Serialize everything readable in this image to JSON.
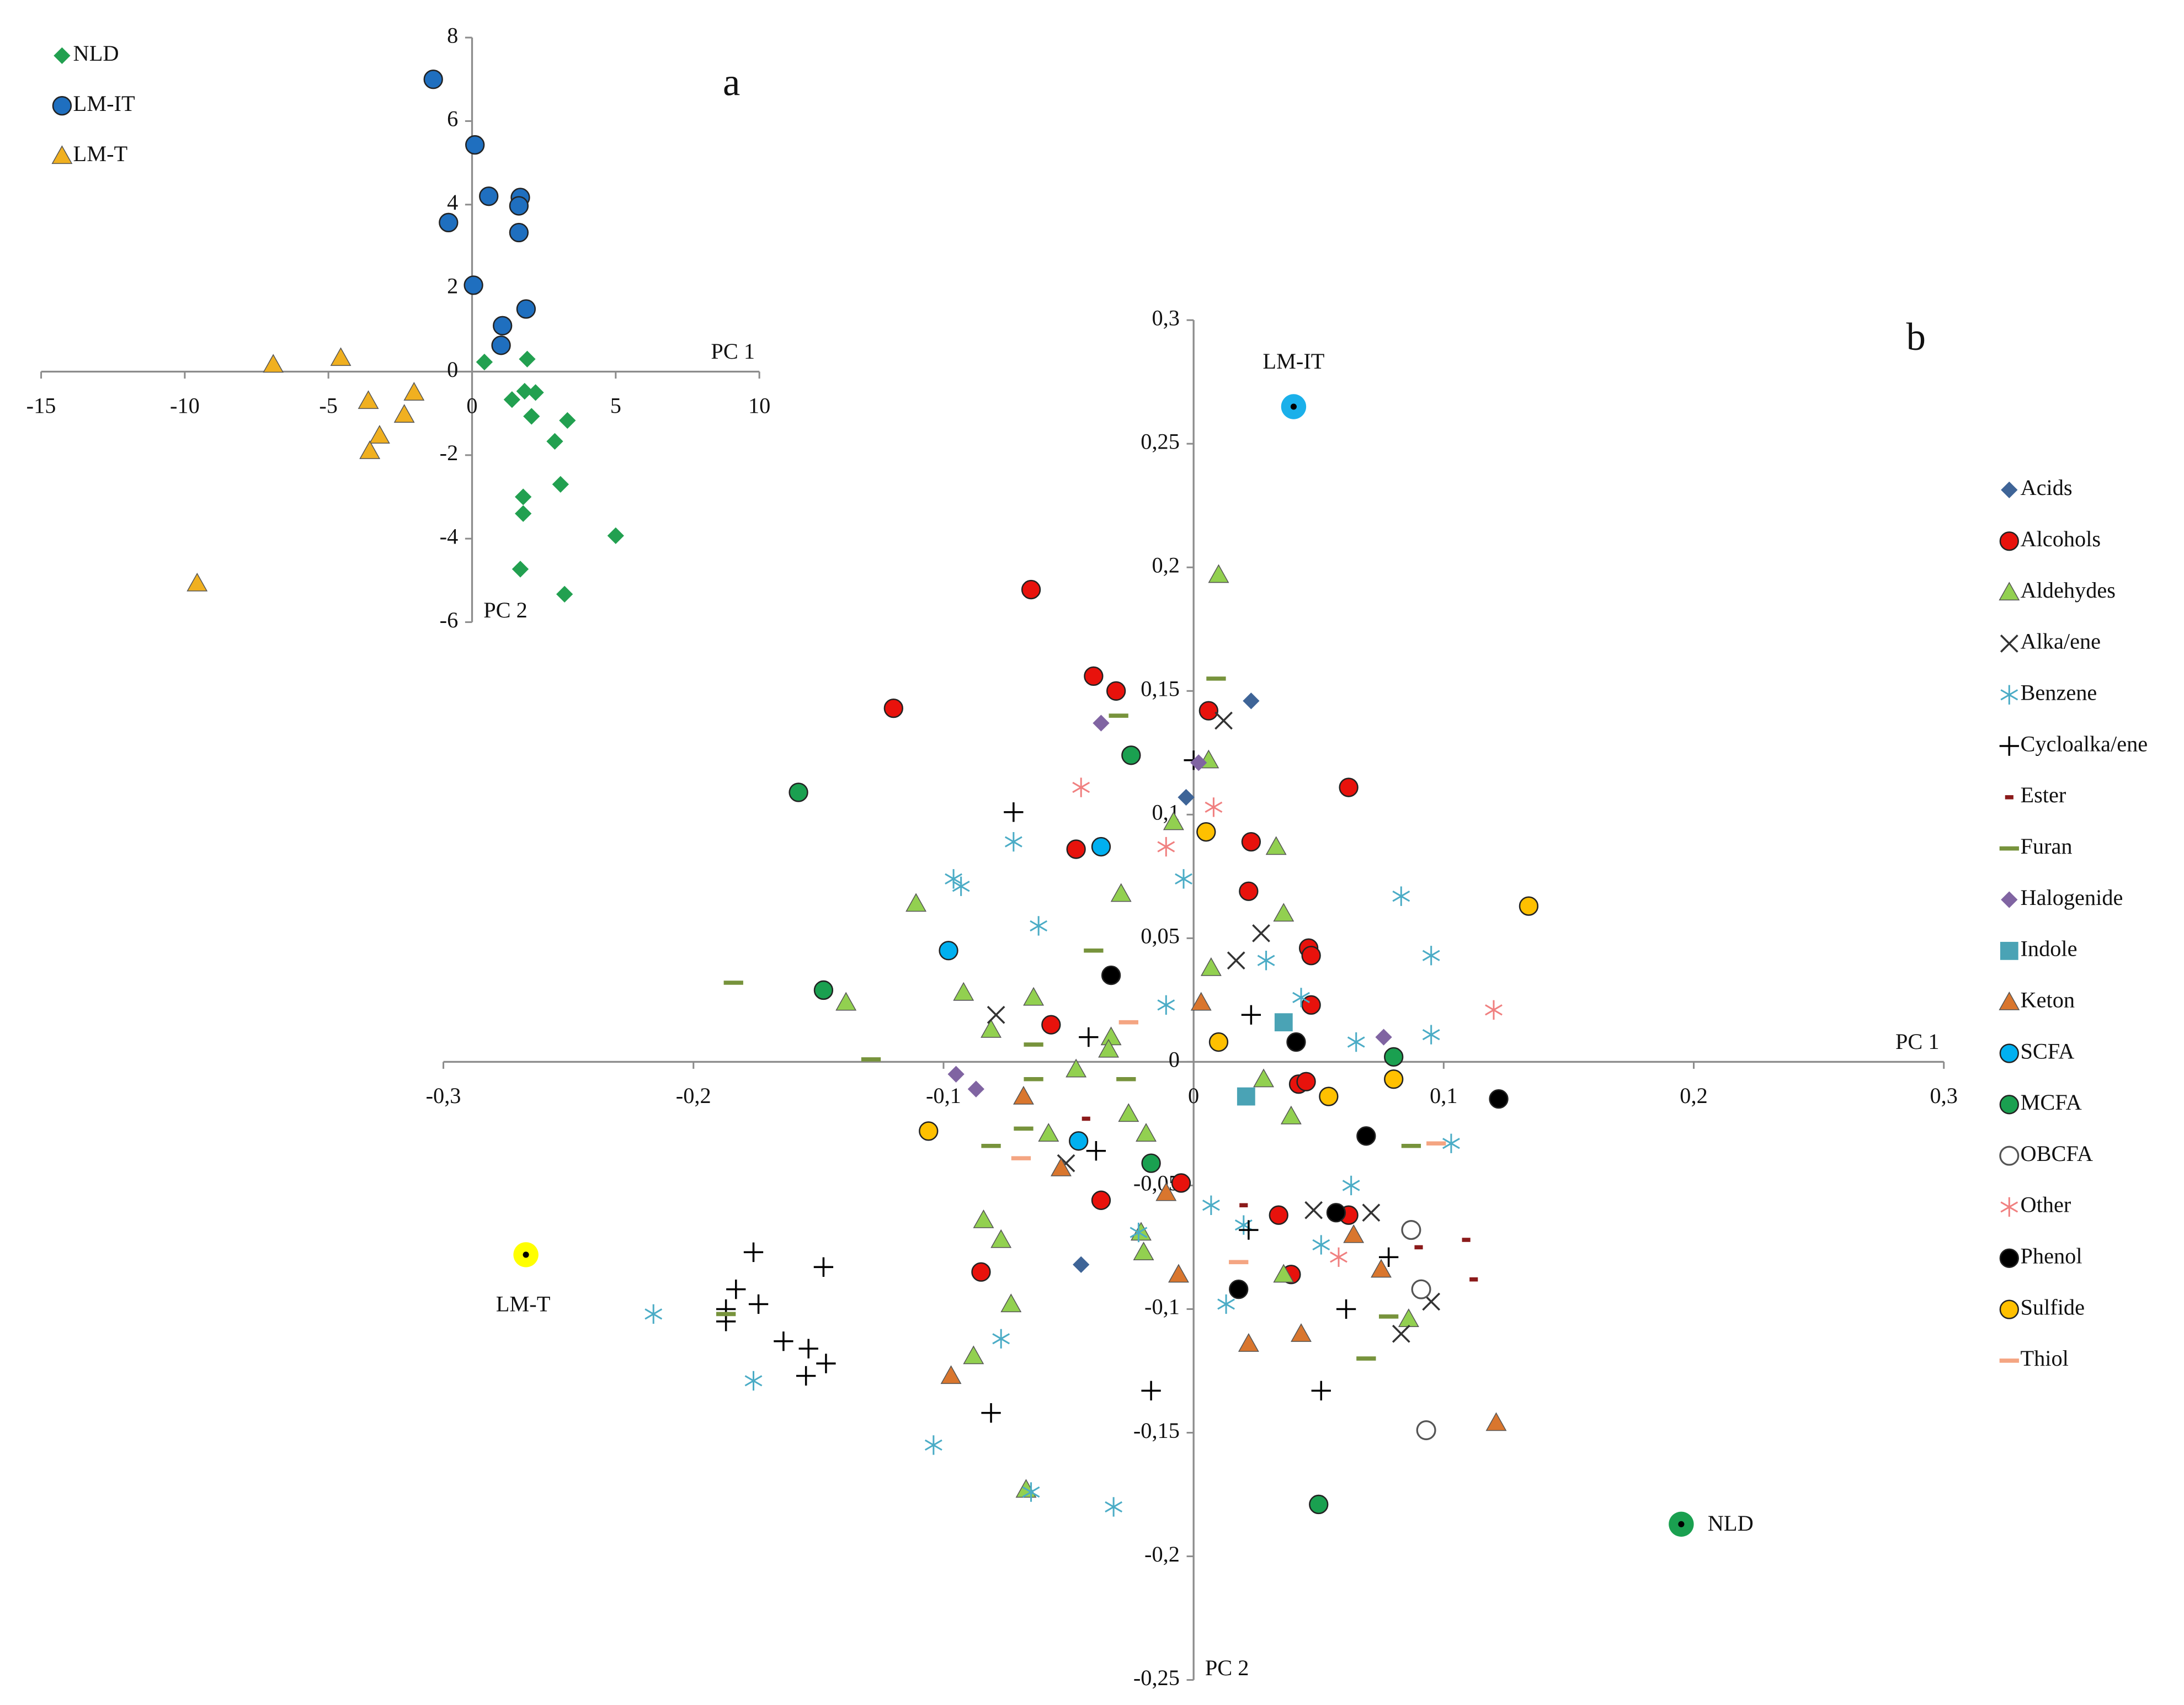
{
  "chart_data": [
    {
      "type": "scatter",
      "title": "a",
      "xlabel": "PC 1",
      "ylabel": "PC 2",
      "xlim": [
        -15,
        10
      ],
      "xticks": [
        -15,
        -10,
        -5,
        0,
        5,
        10
      ],
      "ylim": [
        -6,
        8
      ],
      "yticks": [
        -6,
        -4,
        -2,
        0,
        2,
        4,
        6,
        8
      ],
      "grid": false,
      "legend": "top-left",
      "series": [
        {
          "name": "NLD",
          "color": "#22a050",
          "marker": "diamond",
          "x": [
            0.43,
            1.92,
            1.39,
            1.83,
            2.21,
            2.07,
            3.32,
            2.88,
            3.08,
            1.78,
            1.78,
            5.0,
            1.68,
            3.22
          ],
          "y": [
            0.23,
            0.3,
            -0.67,
            -0.47,
            -0.5,
            -1.07,
            -1.17,
            -1.67,
            -2.7,
            -3.0,
            -3.4,
            -3.93,
            -4.73,
            -5.33
          ]
        },
        {
          "name": "LM-IT",
          "color": "#1f6fbf",
          "marker": "circle",
          "x": [
            -1.35,
            0.1,
            -0.82,
            0.58,
            1.68,
            1.63,
            1.63,
            0.05,
            1.88,
            1.06,
            1.01
          ],
          "y": [
            7.0,
            5.43,
            3.57,
            4.2,
            4.17,
            3.97,
            3.33,
            2.07,
            1.5,
            1.1,
            0.63
          ]
        },
        {
          "name": "LM-T",
          "color": "#f0b020",
          "marker": "triangle",
          "x": [
            -6.92,
            -4.57,
            -3.61,
            -2.02,
            -2.36,
            -3.22,
            -3.56,
            -9.57
          ],
          "y": [
            0.17,
            0.33,
            -0.7,
            -0.5,
            -1.03,
            -1.53,
            -1.9,
            -5.07
          ]
        }
      ]
    },
    {
      "type": "scatter",
      "title": "b",
      "xlabel": "PC 1",
      "ylabel": "PC 2",
      "xlim": [
        -0.3,
        0.3
      ],
      "xticks": [
        {
          "value": -0.3,
          "label": "-0,3"
        },
        {
          "value": -0.2,
          "label": "-0,2"
        },
        {
          "value": -0.1,
          "label": "-0,1"
        },
        0,
        {
          "value": 0.1,
          "label": "0,1"
        },
        {
          "value": 0.2,
          "label": "0,2"
        },
        {
          "value": 0.3,
          "label": "0,3"
        }
      ],
      "ylim": [
        -0.25,
        0.3
      ],
      "yticks": [
        {
          "value": -0.25,
          "label": "-0,25"
        },
        {
          "value": -0.2,
          "label": "-0,2"
        },
        {
          "value": -0.15,
          "label": "-0,15"
        },
        {
          "value": -0.1,
          "label": "-0,1"
        },
        {
          "value": -0.05,
          "label": "-0,05"
        },
        0,
        {
          "value": 0.05,
          "label": "0,05"
        },
        {
          "value": 0.1,
          "label": "0,1"
        },
        {
          "value": 0.15,
          "label": "0,15"
        },
        {
          "value": 0.2,
          "label": "0,2"
        },
        {
          "value": 0.25,
          "label": "0,25"
        },
        {
          "value": 0.3,
          "label": "0,3"
        }
      ],
      "grid": false,
      "legend": "right",
      "series": [
        {
          "name": "Acids",
          "color": "#3e6497",
          "marker": "diamond",
          "x": [
            0.023,
            -0.003,
            -0.045
          ],
          "y": [
            0.146,
            0.107,
            -0.082
          ]
        },
        {
          "name": "Alcohols",
          "color": "#e8120c",
          "marker": "circle",
          "x": [
            -0.065,
            -0.12,
            -0.04,
            -0.031,
            0.006,
            0.062,
            -0.047,
            0.023,
            0.022,
            0.046,
            0.047,
            0.047,
            -0.057,
            0.042,
            0.045,
            -0.005,
            -0.037,
            0.034,
            0.062,
            0.039,
            -0.085
          ],
          "y": [
            0.191,
            0.143,
            0.156,
            0.15,
            0.142,
            0.111,
            0.086,
            0.089,
            0.069,
            0.046,
            0.043,
            0.023,
            0.015,
            -0.009,
            -0.008,
            -0.049,
            -0.056,
            -0.062,
            -0.062,
            -0.086,
            -0.085
          ]
        },
        {
          "name": "Aldehydes",
          "color": "#92d050",
          "marker": "triangle",
          "x": [
            0.01,
            0.006,
            -0.008,
            0.033,
            -0.029,
            -0.111,
            0.036,
            0.007,
            -0.139,
            -0.092,
            -0.064,
            -0.081,
            -0.033,
            -0.034,
            -0.047,
            0.028,
            0.039,
            -0.058,
            -0.026,
            -0.019,
            -0.084,
            -0.077,
            -0.021,
            -0.02,
            0.036,
            -0.073,
            -0.088,
            0.086,
            -0.067
          ],
          "y": [
            0.197,
            0.122,
            0.097,
            0.087,
            0.068,
            0.064,
            0.06,
            0.038,
            0.024,
            0.028,
            0.026,
            0.013,
            0.01,
            0.005,
            -0.003,
            -0.007,
            -0.022,
            -0.029,
            -0.021,
            -0.029,
            -0.064,
            -0.072,
            -0.069,
            -0.077,
            -0.086,
            -0.098,
            -0.119,
            -0.104,
            -0.173
          ]
        },
        {
          "name": "Alka/ene",
          "color": "#333333",
          "marker": "x",
          "x": [
            0.012,
            0.027,
            0.017,
            -0.079,
            -0.051,
            0.048,
            0.071,
            0.095,
            0.083
          ],
          "y": [
            0.138,
            0.052,
            0.041,
            0.019,
            -0.041,
            -0.06,
            -0.061,
            -0.097,
            -0.11
          ]
        },
        {
          "name": "Benzene",
          "color": "#4bacc6",
          "marker": "asterisk",
          "x": [
            -0.072,
            -0.096,
            -0.093,
            -0.062,
            -0.004,
            0.083,
            0.095,
            0.029,
            0.043,
            -0.011,
            0.065,
            0.095,
            0.103,
            0.063,
            0.007,
            0.02,
            0.051,
            -0.022,
            0.013,
            -0.077,
            -0.216,
            -0.176,
            -0.104,
            -0.065,
            -0.032
          ],
          "y": [
            0.089,
            0.074,
            0.071,
            0.055,
            0.074,
            0.067,
            0.043,
            0.041,
            0.026,
            0.023,
            0.008,
            0.011,
            -0.033,
            -0.05,
            -0.058,
            -0.066,
            -0.074,
            -0.069,
            -0.098,
            -0.112,
            -0.102,
            -0.129,
            -0.155,
            -0.174,
            -0.18
          ]
        },
        {
          "name": "Cycloalka/ene",
          "color": "#000000",
          "marker": "plus",
          "x": [
            0.0,
            -0.072,
            -0.042,
            0.023,
            -0.039,
            0.022,
            0.078,
            0.061,
            0.051,
            -0.017,
            -0.081,
            -0.176,
            -0.148,
            -0.183,
            -0.174,
            -0.187,
            -0.187,
            -0.164,
            -0.154,
            -0.147,
            -0.155
          ],
          "y": [
            0.122,
            0.101,
            0.01,
            0.019,
            -0.036,
            -0.068,
            -0.079,
            -0.1,
            -0.133,
            -0.133,
            -0.142,
            -0.077,
            -0.083,
            -0.092,
            -0.098,
            -0.1,
            -0.105,
            -0.113,
            -0.116,
            -0.122,
            -0.127
          ]
        },
        {
          "name": "Ester",
          "color": "#8b1a1a",
          "marker": "tick",
          "x": [
            -0.043,
            0.02,
            0.09,
            0.109,
            0.112
          ],
          "y": [
            -0.023,
            -0.058,
            -0.075,
            -0.072,
            -0.088
          ]
        },
        {
          "name": "Furan",
          "color": "#77933c",
          "marker": "dash",
          "x": [
            0.009,
            -0.03,
            -0.184,
            -0.129,
            -0.04,
            -0.064,
            -0.064,
            -0.027,
            -0.068,
            -0.081,
            0.087,
            0.078,
            0.069,
            -0.187
          ],
          "y": [
            0.155,
            0.14,
            0.032,
            0.001,
            0.045,
            0.007,
            -0.007,
            -0.007,
            -0.027,
            -0.034,
            -0.034,
            -0.103,
            -0.12,
            -0.102
          ]
        },
        {
          "name": "Halogenide",
          "color": "#8064a2",
          "marker": "diamond",
          "x": [
            -0.037,
            0.002,
            0.076,
            -0.095,
            -0.087
          ],
          "y": [
            0.137,
            0.121,
            0.01,
            -0.005,
            -0.011
          ]
        },
        {
          "name": "Indole",
          "color": "#4aa3b5",
          "marker": "square",
          "x": [
            0.036,
            0.021
          ],
          "y": [
            0.016,
            -0.014
          ]
        },
        {
          "name": "Keton",
          "color": "#d9762e",
          "marker": "triangle",
          "x": [
            0.003,
            -0.068,
            -0.053,
            -0.011,
            0.064,
            0.075,
            -0.006,
            0.022,
            0.043,
            -0.097,
            0.121
          ],
          "y": [
            0.024,
            -0.014,
            -0.043,
            -0.053,
            -0.07,
            -0.084,
            -0.086,
            -0.114,
            -0.11,
            -0.127,
            -0.146
          ]
        },
        {
          "name": "SCFA",
          "color": "#00b0f0",
          "marker": "circle",
          "x": [
            -0.037,
            -0.098,
            -0.046
          ],
          "y": [
            0.087,
            0.045,
            -0.032
          ]
        },
        {
          "name": "MCFA",
          "color": "#1aa050",
          "marker": "circle",
          "x": [
            -0.025,
            -0.158,
            -0.148,
            0.08,
            -0.017,
            0.05
          ],
          "y": [
            0.124,
            0.109,
            0.029,
            0.002,
            -0.041,
            -0.179
          ]
        },
        {
          "name": "OBCFA",
          "color": "#555555",
          "marker": "open-circle",
          "x": [
            0.087,
            0.091,
            0.093
          ],
          "y": [
            -0.068,
            -0.092,
            -0.149
          ]
        },
        {
          "name": "Other",
          "color": "#f08080",
          "marker": "asterisk",
          "x": [
            -0.045,
            0.008,
            -0.011,
            0.12,
            0.058
          ],
          "y": [
            0.111,
            0.103,
            0.087,
            0.021,
            -0.079
          ]
        },
        {
          "name": "Phenol",
          "color": "#000000",
          "marker": "circle",
          "x": [
            -0.033,
            0.041,
            0.122,
            0.069,
            0.057,
            0.018
          ],
          "y": [
            0.035,
            0.008,
            -0.015,
            -0.03,
            -0.061,
            -0.092
          ]
        },
        {
          "name": "Sulfide",
          "color": "#ffc000",
          "marker": "circle",
          "x": [
            0.005,
            0.134,
            0.01,
            0.08,
            0.054,
            -0.106
          ],
          "y": [
            0.093,
            0.063,
            0.008,
            -0.007,
            -0.014,
            -0.028
          ]
        },
        {
          "name": "Thiol",
          "color": "#f4a582",
          "marker": "dash",
          "x": [
            -0.026,
            -0.069,
            0.097,
            0.018
          ],
          "y": [
            0.016,
            -0.039,
            -0.033,
            -0.081
          ]
        }
      ],
      "labeled_points": [
        {
          "label": "LM-IT",
          "color": "#1ab0ea",
          "x": 0.04,
          "y": 0.265,
          "side": "above"
        },
        {
          "label": "LM-T",
          "color": "#ffff00",
          "x": -0.267,
          "y": -0.078,
          "side": "below"
        },
        {
          "label": "NLD",
          "color": "#1aa050",
          "x": 0.195,
          "y": -0.187,
          "side": "right"
        }
      ]
    }
  ]
}
